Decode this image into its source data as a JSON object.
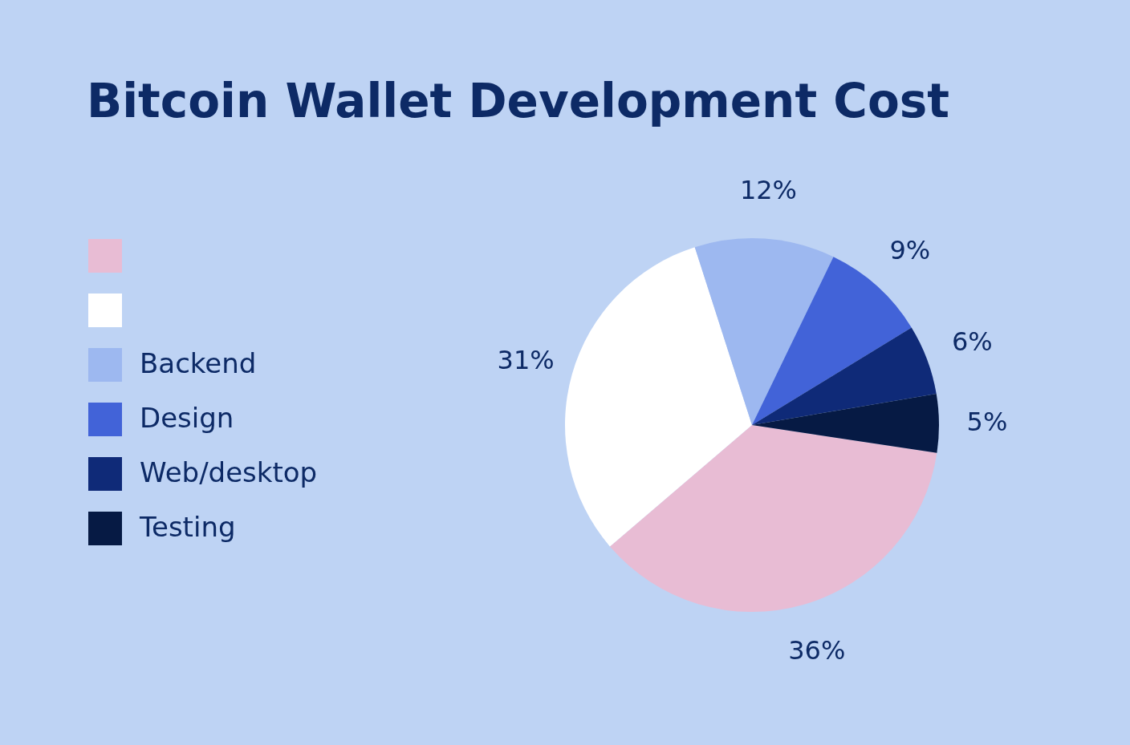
{
  "chart_data": {
    "type": "pie",
    "title": "Bitcoin Wallet Development Cost",
    "categories": [
      null,
      null,
      "Backend",
      "Design",
      "Web/desktop",
      "Testing"
    ],
    "values": [
      36,
      31,
      12,
      9,
      6,
      5
    ],
    "colors": [
      "#e8bcd4",
      "#ffffff",
      "#9db8f0",
      "#4263d8",
      "#0f2a78",
      "#061a44"
    ],
    "value_labels": [
      "36%",
      "31%",
      "12%",
      "9%",
      "6%",
      "5%"
    ],
    "legend": "left"
  }
}
